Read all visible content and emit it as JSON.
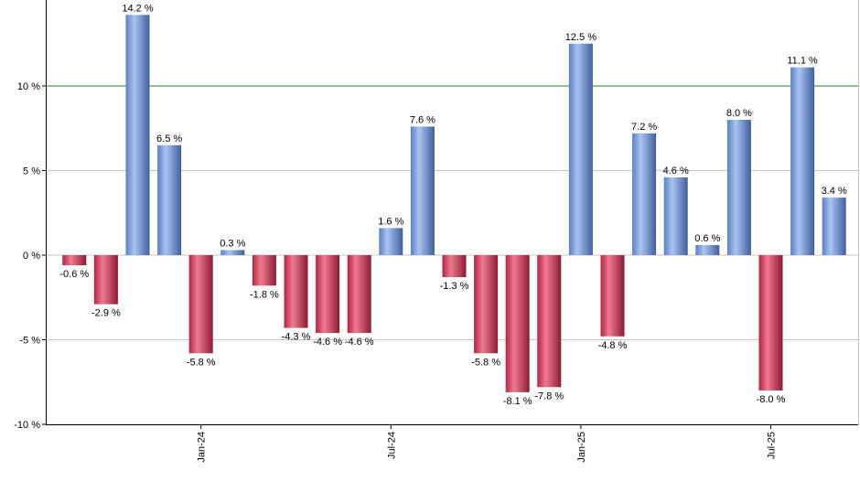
{
  "chart_data": {
    "type": "bar",
    "title": "",
    "xlabel": "",
    "ylabel": "",
    "ylim": [
      -10,
      14.5
    ],
    "grid": true,
    "reference_line": {
      "value": 10,
      "color": "#2e7d32"
    },
    "colors": {
      "positive": "#6f95d8",
      "negative": "#c8324e"
    },
    "values": [
      -0.6,
      -2.9,
      14.2,
      6.5,
      -5.8,
      0.3,
      -1.8,
      -4.3,
      -4.6,
      -4.6,
      1.6,
      7.6,
      -1.3,
      -5.8,
      -8.1,
      -7.8,
      12.5,
      -4.8,
      7.2,
      4.6,
      0.6,
      8.0,
      -8.0,
      11.1,
      3.4
    ],
    "labels": [
      "-0.6 %",
      "-2.9 %",
      "14.2 %",
      "6.5 %",
      "-5.8 %",
      "0.3 %",
      "-1.8 %",
      "-4.3 %",
      "-4.6 %",
      "-4.6 %",
      "1.6 %",
      "7.6 %",
      "-1.3 %",
      "-5.8 %",
      "-8.1 %",
      "-7.8 %",
      "12.5 %",
      "-4.8 %",
      "7.2 %",
      "4.6 %",
      "0.6 %",
      "8.0 %",
      "-8.0 %",
      "11.1 %",
      "3.4 %"
    ],
    "y_ticks": [
      {
        "value": 10,
        "label": "10 %"
      },
      {
        "value": 5,
        "label": "5 %"
      },
      {
        "value": 0,
        "label": "0 %"
      },
      {
        "value": -5,
        "label": "-5 %"
      },
      {
        "value": -10,
        "label": "-10 %"
      }
    ],
    "x_ticks": [
      {
        "index": 4,
        "label": "Jan-24"
      },
      {
        "index": 10,
        "label": "Jul-24"
      },
      {
        "index": 16,
        "label": "Jan-25"
      },
      {
        "index": 22,
        "label": "Jul-25"
      }
    ]
  }
}
